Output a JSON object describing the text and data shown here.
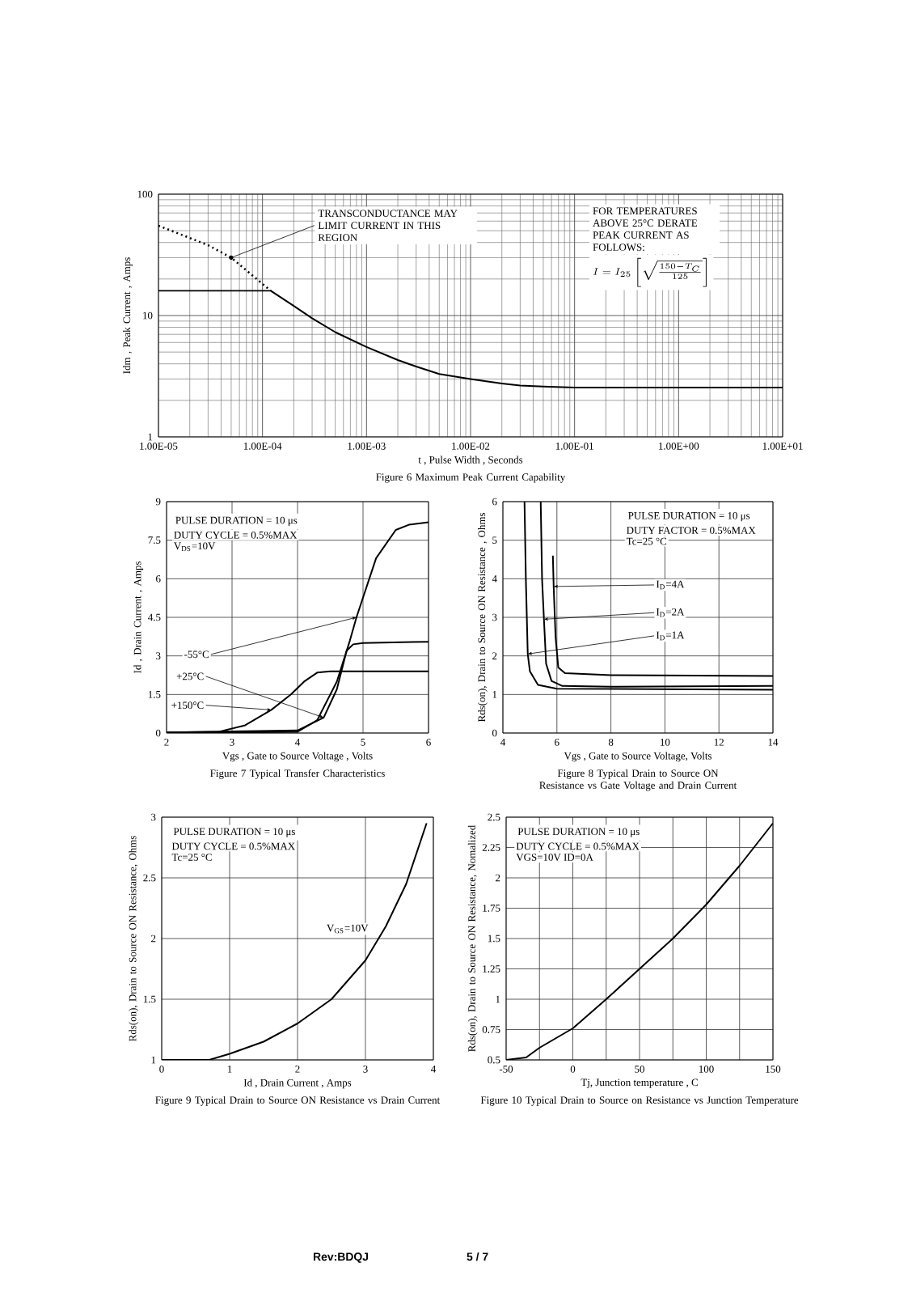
{
  "chart_data": [
    {
      "type": "line",
      "title": "Figure   6   Maximum Peak Current Capability",
      "xlabel": "t ,  Pulse Width , Seconds",
      "ylabel": "Idm , Peak Current , Amps",
      "log": "xy",
      "grid": true,
      "xlim": [
        1e-05,
        10
      ],
      "ylim": [
        1,
        100
      ],
      "xticks": [
        {
          "value": 1e-05,
          "label": "1.00E-05"
        },
        {
          "value": 0.0001,
          "label": "1.00E-04"
        },
        {
          "value": 0.001,
          "label": "1.00E-03"
        },
        {
          "value": 0.01,
          "label": "1.00E-02"
        },
        {
          "value": 0.1,
          "label": "1.00E-01"
        },
        {
          "value": 1,
          "label": "1.00E+00"
        },
        {
          "value": 10,
          "label": "1.00E+01"
        }
      ],
      "yticks": [
        1,
        10,
        100
      ],
      "series": [
        {
          "color": "#000000",
          "x": [
            1e-05,
            0.00012,
            0.0002,
            0.0003,
            0.0005,
            0.001,
            0.002,
            0.003,
            0.005,
            0.01,
            0.02,
            0.03,
            0.05,
            0.1,
            1,
            10
          ],
          "values": [
            16,
            16,
            12,
            9.5,
            7.3,
            5.5,
            4.3,
            3.8,
            3.3,
            3.0,
            2.75,
            2.65,
            2.6,
            2.55,
            2.55,
            2.55
          ]
        },
        {
          "color": "#000000",
          "line_style": "dotted",
          "x": [
            1e-05,
            3e-05,
            5e-05,
            0.00012
          ],
          "values": [
            55,
            38,
            30,
            16
          ]
        }
      ],
      "annotations": [
        {
          "text": "TRANSCONDUCTANCE MAY LIMIT CURRENT IN THIS REGION",
          "x": 5e-05,
          "y": 30
        },
        "FOR TEMPERATURES ABOVE 25°C DERATE PEAK CURRENT AS FOLLOWS:",
        "I = I_{25}\\left[\\sqrt{\\frac{150 - T_{C}}{125}}\\right]",
        "Rev:BDQJ",
        "5 / 7"
      ]
    },
    {
      "type": "line",
      "title": "Figure   7   Typical Transfer Characteristics",
      "xlabel": "Vgs , Gate to Source Voltage , Volts",
      "ylabel": "Id , Drain Current , Amps",
      "grid": true,
      "xlim": [
        2,
        6
      ],
      "ylim": [
        0,
        9
      ],
      "xticks": [
        2,
        3,
        4,
        5,
        6
      ],
      "yticks": [
        0,
        1.5,
        3,
        4.5,
        6,
        7.5,
        9
      ],
      "series": [
        {
          "name": "-55°C",
          "color": "#000000",
          "x": [
            2,
            3,
            4,
            4.3,
            4.6,
            4.8,
            4.9,
            5.2,
            5.5,
            5.7,
            6
          ],
          "values": [
            0.02,
            0.02,
            0.05,
            0.5,
            2,
            3.6,
            4.5,
            6.8,
            7.9,
            8.1,
            8.2
          ]
        },
        {
          "name": "+25°C",
          "color": "#000000",
          "x": [
            2,
            4,
            4.4,
            4.6,
            4.75,
            4.85,
            5,
            6
          ],
          "values": [
            0.02,
            0.1,
            0.6,
            1.7,
            3.2,
            3.45,
            3.5,
            3.55
          ]
        },
        {
          "name": "+150°C",
          "color": "#000000",
          "x": [
            2,
            2.8,
            3.2,
            3.6,
            3.9,
            4.1,
            4.3,
            4.5,
            6
          ],
          "values": [
            0.02,
            0.05,
            0.3,
            0.9,
            1.5,
            2.0,
            2.35,
            2.4,
            2.4
          ]
        }
      ],
      "annotations": [
        "PULSE  DURATION = 10 μs",
        "DUTY  CYCLE = 0.5%MAX",
        "V$_{DS}$=10V"
      ]
    },
    {
      "type": "line",
      "title": "Figure   8   Typical Drain to Source ON Resistance vs Gate Voltage and Drain Current",
      "xlabel": "Vgs , Gate to Source Voltage,  Volts",
      "ylabel": "Rds(on), Drain to Source ON Resistance , Ohms",
      "grid": true,
      "xlim": [
        4,
        14
      ],
      "ylim": [
        0,
        6
      ],
      "xticks": [
        4,
        6,
        8,
        10,
        12,
        14
      ],
      "yticks": [
        0,
        1,
        2,
        3,
        4,
        5,
        6
      ],
      "series": [
        {
          "name": "I$_{D}$=4A",
          "color": "#000000",
          "x": [
            5.85,
            5.88,
            5.95,
            6.05,
            6.3,
            8,
            14
          ],
          "values": [
            4.6,
            3.8,
            2.5,
            1.7,
            1.55,
            1.5,
            1.48
          ]
        },
        {
          "name": "I$_{D}$=2A",
          "color": "#000000",
          "x": [
            5.4,
            5.45,
            5.52,
            5.6,
            5.8,
            6.2,
            8,
            14
          ],
          "values": [
            6,
            4,
            2.95,
            1.8,
            1.35,
            1.22,
            1.2,
            1.22
          ]
        },
        {
          "name": "I$_{D}$=1A",
          "color": "#000000",
          "x": [
            4.8,
            4.85,
            4.92,
            5.0,
            5.3,
            6,
            14
          ],
          "values": [
            6,
            4,
            2.05,
            1.6,
            1.25,
            1.15,
            1.12
          ]
        }
      ],
      "annotations": [
        "PULSE  DURATION = 10 μs",
        "DUTY  FACTOR = 0.5%MAX",
        "Tc=25 °C"
      ]
    },
    {
      "type": "line",
      "title": "Figure   9   Typical Drain to Source ON Resistance vs Drain Current",
      "xlabel": "Id , Drain Current , Amps",
      "ylabel": "Rds(on), Drain to Source ON Resistance, Ohms",
      "grid": true,
      "xlim": [
        0,
        4
      ],
      "ylim": [
        1,
        3
      ],
      "xticks": [
        0,
        1,
        2,
        3,
        4
      ],
      "yticks": [
        1,
        1.5,
        2,
        2.5,
        3
      ],
      "series": [
        {
          "name": "V$_{GS}$=10V",
          "color": "#000000",
          "x": [
            0,
            0.7,
            1,
            1.5,
            2,
            2.5,
            3,
            3.3,
            3.6,
            3.9
          ],
          "values": [
            1,
            1,
            1.05,
            1.15,
            1.3,
            1.5,
            1.82,
            2.1,
            2.45,
            2.95
          ]
        }
      ],
      "annotations": [
        "PULSE  DURATION = 10 μs",
        "DUTY  CYCLE = 0.5%MAX",
        "Tc=25 °C"
      ]
    },
    {
      "type": "line",
      "title": "Figure   10   Typical Drain to Source on Resistance vs Junction Temperature",
      "xlabel": "Tj, Junction temperature , C",
      "ylabel": "Rds(on), Drain to Source ON Resistance, Nomalized",
      "grid": true,
      "xlim": [
        -50,
        150
      ],
      "ylim": [
        0.5,
        2.5
      ],
      "xticks": [
        -50,
        {
          "value": -25,
          "label": null
        },
        0,
        {
          "value": 25,
          "label": null
        },
        50,
        {
          "value": 75,
          "label": null
        },
        100,
        {
          "value": 125,
          "label": null
        },
        150
      ],
      "yticks": [
        0.5,
        0.75,
        1,
        1.25,
        1.5,
        1.75,
        2,
        2.25,
        2.5
      ],
      "series": [
        {
          "color": "#000000",
          "x": [
            -50,
            -35,
            -25,
            0,
            25,
            50,
            75,
            100,
            125,
            150
          ],
          "values": [
            0.5,
            0.52,
            0.6,
            0.76,
            1.0,
            1.25,
            1.5,
            1.78,
            2.1,
            2.45
          ]
        }
      ],
      "annotations": [
        "PULSE  DURATION = 10 μs",
        "DUTY  CYCLE = 0.5%MAX",
        "VGS=10V   ID=0A"
      ]
    }
  ]
}
